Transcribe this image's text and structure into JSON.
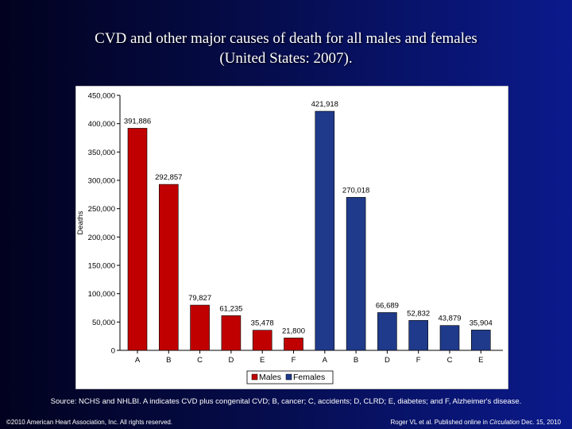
{
  "title_line1": "CVD and other major causes of death for all males and females",
  "title_line2": "(United States: 2007).",
  "source_note": "Source: NCHS and NHLBI. A indicates CVD plus congenital CVD; B, cancer; C, accidents; D, CLRD; E, diabetes; and F, Alzheimer's disease.",
  "footer_left": "©2010 American Heart Association, Inc. All rights reserved.",
  "footer_right_pre": "Roger VL et al. Published online in ",
  "footer_right_journal": "Circulation",
  "footer_right_post": " Dec. 15, 2010",
  "chart_data": {
    "type": "bar",
    "title": "",
    "ylabel": "Deaths",
    "xlabel": "",
    "ylim": [
      0,
      450000
    ],
    "yticks": [
      0,
      50000,
      100000,
      150000,
      200000,
      250000,
      300000,
      350000,
      400000,
      450000
    ],
    "ytick_labels": [
      "0",
      "50,000",
      "100,000",
      "150,000",
      "200,000",
      "250,000",
      "300,000",
      "350,000",
      "400,000",
      "450,000"
    ],
    "grid": false,
    "legend_placement": "bottom",
    "series": [
      {
        "name": "Males",
        "color": "#c00000",
        "categories": [
          "A",
          "B",
          "C",
          "D",
          "E",
          "F"
        ],
        "values": [
          391886,
          292857,
          79827,
          61235,
          35478,
          21800
        ],
        "labels": [
          "391,886",
          "292,857",
          "79,827",
          "61,235",
          "35,478",
          "21,800"
        ]
      },
      {
        "name": "Females",
        "color": "#1f3a8a",
        "categories": [
          "A",
          "B",
          "D",
          "F",
          "C",
          "E"
        ],
        "values": [
          421918,
          270018,
          66689,
          52832,
          43879,
          35904
        ],
        "labels": [
          "421,918",
          "270,018",
          "66,689",
          "52,832",
          "43,879",
          "35,904"
        ]
      }
    ]
  }
}
